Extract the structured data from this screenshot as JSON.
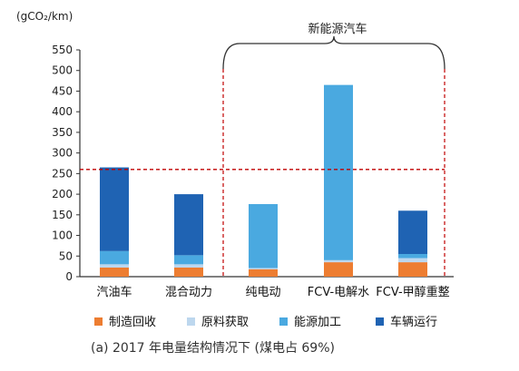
{
  "chart_data": {
    "type": "bar",
    "stacked": true,
    "ylabel": "(gCO₂/km)",
    "ylim": [
      0,
      550
    ],
    "yticks": [
      0,
      50,
      100,
      150,
      200,
      250,
      300,
      350,
      400,
      450,
      500,
      550
    ],
    "grid": false,
    "categories": [
      "汽油车",
      "混合动力",
      "纯电动",
      "FCV-电解水",
      "FCV-甲醇重整"
    ],
    "series": [
      {
        "name": "制造回收",
        "color": "#ed7d31",
        "values": [
          22,
          22,
          18,
          35,
          35
        ]
      },
      {
        "name": "原料获取",
        "color": "#bdd7ee",
        "values": [
          8,
          8,
          3,
          5,
          10
        ]
      },
      {
        "name": "能源加工",
        "color": "#4aa9e0",
        "values": [
          32,
          22,
          155,
          425,
          10
        ]
      },
      {
        "name": "车辆运行",
        "color": "#1f63b3",
        "values": [
          203,
          148,
          0,
          0,
          105
        ]
      }
    ],
    "reference_line": {
      "value": 260,
      "style": "dashed",
      "color": "#c00000"
    },
    "bracket_label": "新能源汽车",
    "legend_position": "bottom",
    "caption": "(a) 2017 年电量结构情况下 (煤电占 69%)"
  }
}
